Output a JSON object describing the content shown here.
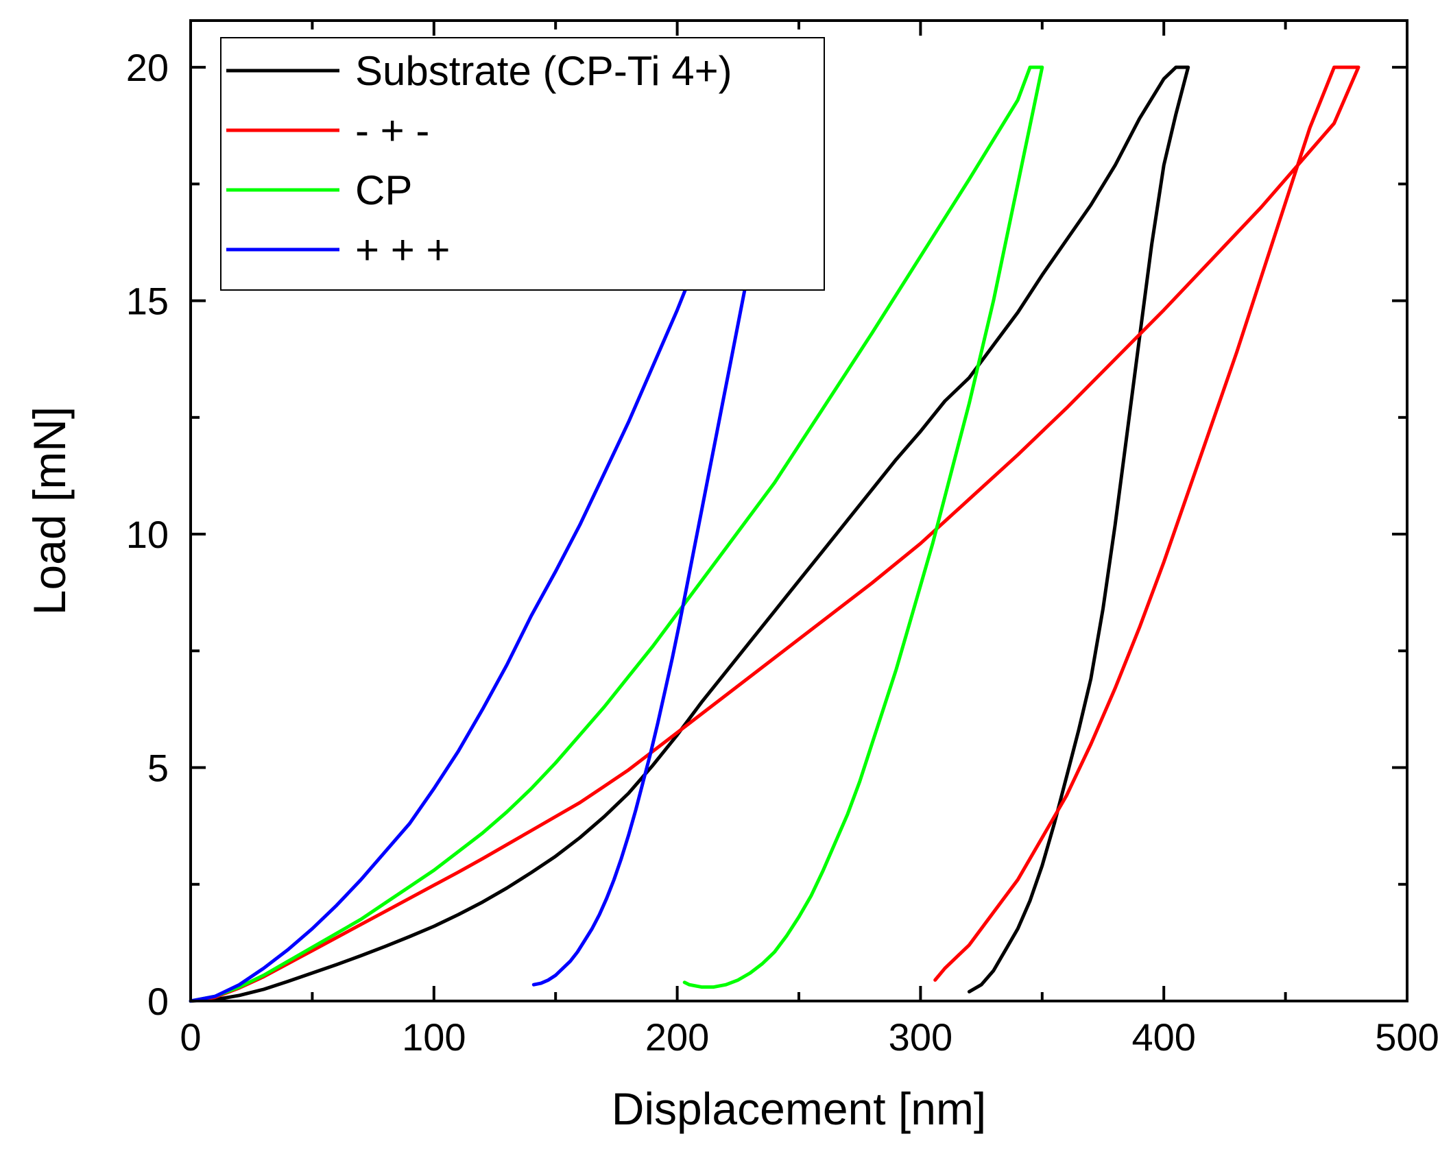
{
  "chart_data": {
    "type": "line",
    "title": "",
    "xlabel": "Displacement [nm]",
    "ylabel": "Load [mN]",
    "xlim": [
      0,
      500
    ],
    "ylim": [
      0,
      21
    ],
    "xticks": [
      0,
      100,
      200,
      300,
      400,
      500
    ],
    "xtick_labels": [
      "0",
      "100",
      "200",
      "300",
      "400",
      "500"
    ],
    "yticks": [
      0,
      5,
      10,
      15,
      20
    ],
    "ytick_labels": [
      "0",
      "5",
      "10",
      "15",
      "20"
    ],
    "grid": false,
    "legend_position": "top-left",
    "series": [
      {
        "name": "Substrate (CP-Ti 4+)",
        "color": "#000000",
        "x": [
          0,
          10,
          20,
          30,
          40,
          50,
          60,
          70,
          80,
          90,
          100,
          110,
          120,
          130,
          140,
          150,
          160,
          170,
          180,
          190,
          200,
          210,
          220,
          230,
          240,
          250,
          260,
          270,
          280,
          290,
          300,
          310,
          315,
          320,
          325,
          330,
          340,
          350,
          360,
          370,
          380,
          390,
          400,
          405,
          410,
          405,
          400,
          395,
          390,
          385,
          380,
          375,
          370,
          365,
          360,
          355,
          350,
          345,
          340,
          335,
          330,
          325,
          320
        ],
        "y": [
          0,
          0.03,
          0.12,
          0.25,
          0.42,
          0.6,
          0.78,
          0.97,
          1.17,
          1.38,
          1.6,
          1.85,
          2.12,
          2.42,
          2.75,
          3.1,
          3.5,
          3.95,
          4.45,
          5.05,
          5.7,
          6.4,
          7.05,
          7.7,
          8.35,
          9.0,
          9.65,
          10.3,
          10.95,
          11.6,
          12.2,
          12.85,
          13.1,
          13.35,
          13.7,
          14.05,
          14.75,
          15.55,
          16.3,
          17.05,
          17.9,
          18.9,
          19.75,
          20.0,
          20.0,
          19.0,
          17.9,
          16.2,
          14.2,
          12.2,
          10.2,
          8.4,
          6.9,
          5.8,
          4.8,
          3.8,
          2.9,
          2.15,
          1.55,
          1.1,
          0.65,
          0.35,
          0.2
        ]
      },
      {
        "name": "- + -",
        "color": "#ff0000",
        "x": [
          0,
          10,
          20,
          30,
          40,
          50,
          60,
          70,
          80,
          90,
          100,
          110,
          120,
          130,
          140,
          150,
          160,
          170,
          180,
          190,
          200,
          220,
          240,
          260,
          280,
          300,
          320,
          340,
          360,
          380,
          400,
          420,
          440,
          460,
          470,
          480,
          475,
          470,
          460,
          450,
          440,
          430,
          420,
          410,
          400,
          390,
          380,
          370,
          360,
          350,
          340,
          330,
          320,
          315,
          310,
          306
        ],
        "y": [
          0,
          0.08,
          0.28,
          0.52,
          0.8,
          1.08,
          1.36,
          1.64,
          1.92,
          2.2,
          2.48,
          2.76,
          3.05,
          3.35,
          3.65,
          3.95,
          4.25,
          4.6,
          4.95,
          5.35,
          5.75,
          6.55,
          7.35,
          8.15,
          8.95,
          9.8,
          10.75,
          11.7,
          12.7,
          13.75,
          14.8,
          15.9,
          17.0,
          18.2,
          18.8,
          20.0,
          20.0,
          20.0,
          18.7,
          17.1,
          15.5,
          13.9,
          12.4,
          10.9,
          9.4,
          8.0,
          6.7,
          5.5,
          4.4,
          3.5,
          2.6,
          1.9,
          1.2,
          0.95,
          0.7,
          0.45
        ]
      },
      {
        "name": "CP",
        "color": "#00ff00",
        "x": [
          0,
          10,
          20,
          30,
          40,
          50,
          60,
          70,
          80,
          90,
          100,
          110,
          120,
          130,
          140,
          150,
          160,
          170,
          180,
          190,
          200,
          220,
          240,
          260,
          280,
          300,
          320,
          340,
          345,
          350,
          346,
          342,
          338,
          334,
          330,
          325,
          320,
          315,
          310,
          305,
          300,
          295,
          290,
          285,
          280,
          275,
          270,
          265,
          260,
          255,
          250,
          245,
          240,
          235,
          230,
          225,
          220,
          215,
          210,
          205,
          203
        ],
        "y": [
          0,
          0.1,
          0.3,
          0.55,
          0.85,
          1.15,
          1.45,
          1.75,
          2.1,
          2.45,
          2.8,
          3.2,
          3.6,
          4.05,
          4.55,
          5.1,
          5.7,
          6.3,
          6.95,
          7.6,
          8.3,
          9.7,
          11.1,
          12.7,
          14.3,
          15.95,
          17.6,
          19.3,
          20.0,
          20.0,
          19.0,
          18.0,
          17.0,
          16.0,
          15.0,
          13.9,
          12.8,
          11.8,
          10.8,
          9.8,
          8.9,
          8.0,
          7.1,
          6.3,
          5.5,
          4.7,
          4.0,
          3.4,
          2.8,
          2.25,
          1.8,
          1.4,
          1.05,
          0.8,
          0.6,
          0.45,
          0.35,
          0.3,
          0.3,
          0.35,
          0.4
        ]
      },
      {
        "name": "+ + +",
        "color": "#0000ff",
        "x": [
          0,
          10,
          20,
          30,
          40,
          50,
          60,
          70,
          80,
          90,
          100,
          110,
          120,
          130,
          140,
          150,
          160,
          170,
          180,
          190,
          200,
          210,
          220,
          230,
          240,
          245,
          248,
          246,
          244,
          242,
          240,
          237,
          234,
          231,
          228,
          225,
          222,
          219,
          216,
          213,
          210,
          207,
          204,
          201,
          198,
          195,
          192,
          189,
          186,
          183,
          180,
          177,
          174,
          171,
          168,
          165,
          162,
          159,
          156,
          153,
          150,
          147,
          144,
          141
        ],
        "y": [
          0,
          0.1,
          0.35,
          0.7,
          1.1,
          1.55,
          2.05,
          2.6,
          3.2,
          3.8,
          4.55,
          5.35,
          6.25,
          7.2,
          8.25,
          9.2,
          10.2,
          11.3,
          12.4,
          13.6,
          14.8,
          16.1,
          17.4,
          18.6,
          19.6,
          20.0,
          20.0,
          19.6,
          19.2,
          18.7,
          18.2,
          17.5,
          16.8,
          16.1,
          15.3,
          14.5,
          13.7,
          12.9,
          12.1,
          11.3,
          10.5,
          9.7,
          8.9,
          8.1,
          7.35,
          6.65,
          5.95,
          5.3,
          4.7,
          4.1,
          3.55,
          3.05,
          2.6,
          2.2,
          1.85,
          1.55,
          1.3,
          1.05,
          0.85,
          0.7,
          0.55,
          0.45,
          0.38,
          0.35
        ]
      }
    ]
  }
}
